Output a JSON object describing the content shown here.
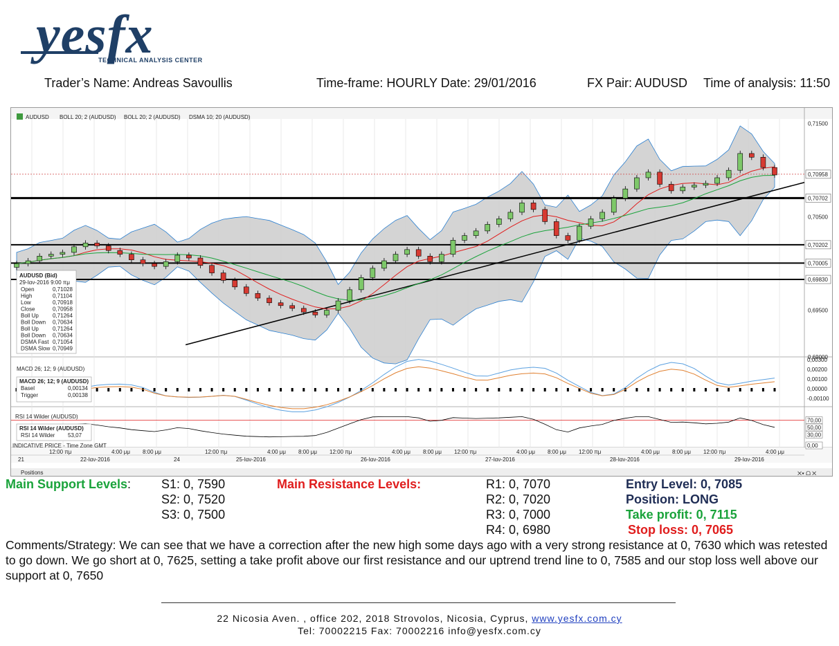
{
  "logo": {
    "word": "yesfx",
    "tagline": "TECHNICAL ANALYSIS CENTER"
  },
  "header": {
    "trader": "Trader’s Name: Andreas Savoullis",
    "timeframe": "Time-frame: HOURLY Date: 29/01/2016",
    "pair": "FX Pair: AUDUSD",
    "time": "Time of analysis: 11:50"
  },
  "toolbar": {
    "symbol": "AUDUSD",
    "ind1": "BOLL 20; 2 (AUDUSD)",
    "ind2": "BOLL 20; 2 (AUDUSD)",
    "ind3": "DSMA 10; 20 (AUDUSD)",
    "macd": "MACD 26; 12; 9 (AUDUSD)",
    "rsi": "RSI 14 Wilder (AUDUSD)",
    "positions": "Positions",
    "indicative": "INDICATIVE PRICE - Time Zone GMT"
  },
  "tooltip": {
    "title": "AUDUSD (Bid)",
    "datetime": "29-Ιαν-2016 9:00 πμ",
    "rows": [
      {
        "label": "Open",
        "value": "0,71028",
        "color": "#222"
      },
      {
        "label": "High",
        "value": "0,71104",
        "color": "#222"
      },
      {
        "label": "Low",
        "value": "0,70918",
        "color": "#222"
      },
      {
        "label": "Close",
        "value": "0,70958",
        "color": "#222"
      },
      {
        "label": "Boll Up",
        "value": "0,71264",
        "color": "#2a7fd0"
      },
      {
        "label": "Boll Down",
        "value": "0,70634",
        "color": "#2a7fd0"
      },
      {
        "label": "Boll Up",
        "value": "0,71264",
        "color": "#2a7fd0"
      },
      {
        "label": "Boll Down",
        "value": "0,70634",
        "color": "#2a7fd0"
      },
      {
        "label": "DSMA Fast",
        "value": "0,71054",
        "color": "#e01d1d"
      },
      {
        "label": "DSMA Slow",
        "value": "0,70949",
        "color": "#1aa33b"
      }
    ]
  },
  "macd_tooltip": {
    "title": "MACD 26; 12; 9 (AUDUSD)",
    "rows": [
      {
        "label": "Basel",
        "value": "0,00134"
      },
      {
        "label": "Trigger",
        "value": "0,00138"
      }
    ]
  },
  "rsi_tooltip": {
    "title": "RSI 14 Wilder (AUDUSD)",
    "label": "RSI 14 Wilder",
    "value": "53,07"
  },
  "chart_data": {
    "type": "candlestick",
    "symbol": "AUDUSD",
    "price_axis_labels": [
      "0,71500",
      "0,70958",
      "0,70702",
      "0,70500",
      "0,70202",
      "0,70005",
      "0,69830",
      "0,69500",
      "0,69000"
    ],
    "price_ylim": [
      0.69,
      0.7155
    ],
    "last_price": 0.70958,
    "horizontal_levels": [
      0.70702,
      0.70202,
      0.70005,
      0.6983
    ],
    "trendline": {
      "start_x": 0.22,
      "start_y": 0.6913,
      "end_x": 1.0,
      "end_y": 0.7087
    },
    "macd_axis_labels": [
      "0,00300",
      "0,00200",
      "0,00100",
      "0,00000",
      "-0,00100"
    ],
    "rsi_axis_labels": [
      "70,00",
      "50,00",
      "30,00",
      "0,00"
    ],
    "time_labels": [
      "21",
      "12:00 πμ",
      "22-Ιαν-2016",
      "4:00 μμ",
      "8:00 μμ",
      "24",
      "12:00 πμ",
      "25-Ιαν-2016",
      "4:00 μμ",
      "8:00 μμ",
      "12:00 πμ",
      "26-Ιαν-2016",
      "4:00 μμ",
      "8:00 μμ",
      "12:00 πμ",
      "27-Ιαν-2016",
      "4:00 μμ",
      "8:00 μμ",
      "12:00 πμ",
      "28-Ιαν-2016",
      "4:00 μμ",
      "8:00 μμ",
      "12:00 πμ",
      "29-Ιαν-2016",
      "4:00 μμ"
    ],
    "close_path": [
      0.7,
      0.7003,
      0.7008,
      0.701,
      0.7012,
      0.7018,
      0.7022,
      0.7019,
      0.7014,
      0.701,
      0.7004,
      0.7,
      0.6997,
      0.7002,
      0.7009,
      0.7006,
      0.6998,
      0.699,
      0.6982,
      0.6975,
      0.6968,
      0.6963,
      0.6958,
      0.6955,
      0.6952,
      0.6948,
      0.6945,
      0.695,
      0.696,
      0.6972,
      0.6985,
      0.6995,
      0.7003,
      0.701,
      0.7015,
      0.7008,
      0.7002,
      0.701,
      0.7025,
      0.703,
      0.7035,
      0.7042,
      0.7048,
      0.7055,
      0.7065,
      0.7058,
      0.7045,
      0.703,
      0.7025,
      0.704,
      0.7048,
      0.7055,
      0.707,
      0.708,
      0.7092,
      0.7098,
      0.7085,
      0.7078,
      0.7082,
      0.7084,
      0.7086,
      0.7092,
      0.71,
      0.7118,
      0.7114,
      0.7103,
      0.7095
    ],
    "rsi_levels": [
      70,
      50,
      30
    ]
  },
  "levels": {
    "support_title": "Main Support Levels",
    "colon": ":",
    "s1": "S1: 0, 7590",
    "s2": "S2: 0, 7520",
    "s3": "S3: 0, 7500",
    "resistance_title": "Main Resistance Levels:",
    "r1": "R1: 0, 7070",
    "r2": "R2: 0, 7020",
    "r3": "R3: 0, 7000",
    "r4": "R4: 0, 6980",
    "entry": "Entry Level: 0, 7085",
    "position": "Position: LONG",
    "take_profit": "Take profit: 0, 7115",
    "stop_loss": "Stop loss: 0, 7065"
  },
  "comments": "Comments/Strategy: We can see that we have a correction after the new high some days ago with a very strong resistance at 0, 7630 which was retested to go down. We go short at 0, 7625, setting a take profit above our first resistance and our uptrend trend line to 0, 7585 and our stop loss well above our support at 0, 7650",
  "footer": {
    "address": "22 Nicosia Aven. ,  office 202,  2018 Strovolos,  Nicosia,  Cyprus,  ",
    "website": "www.yesfx.com.cy",
    "contact": "Tel:  70002215  Fax:  70002216  info@yesfx.com.cy"
  },
  "colors": {
    "brand": "#1f3f66",
    "bull": "#7ec86a",
    "bear": "#d63a32",
    "band_fill": "#cfcfcf",
    "band_edge": "#2a7fd0",
    "fast_ma": "#e01d1d",
    "slow_ma": "#1aa33b"
  }
}
